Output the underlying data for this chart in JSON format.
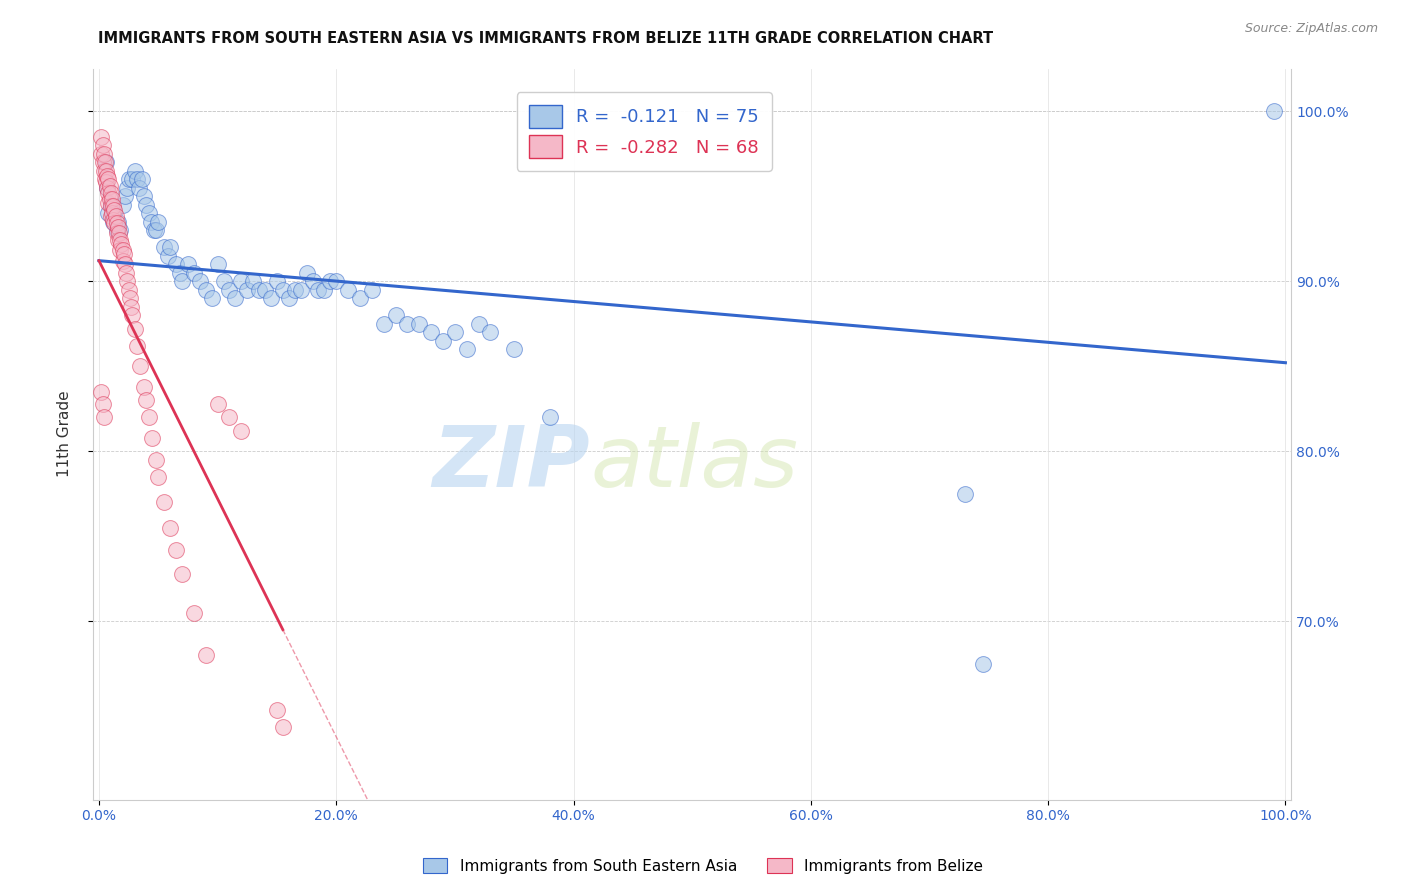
{
  "title": "IMMIGRANTS FROM SOUTH EASTERN ASIA VS IMMIGRANTS FROM BELIZE 11TH GRADE CORRELATION CHART",
  "source": "Source: ZipAtlas.com",
  "ylabel": "11th Grade",
  "xlim": [
    -0.005,
    1.005
  ],
  "ylim": [
    0.595,
    1.025
  ],
  "x_tick_vals": [
    0.0,
    0.2,
    0.4,
    0.6,
    0.8,
    1.0
  ],
  "x_tick_labels": [
    "0.0%",
    "20.0%",
    "40.0%",
    "60.0%",
    "80.0%",
    "100.0%"
  ],
  "y_tick_vals": [
    0.7,
    0.8,
    0.9,
    1.0
  ],
  "y_tick_labels": [
    "70.0%",
    "80.0%",
    "90.0%",
    "100.0%"
  ],
  "watermark_zip": "ZIP",
  "watermark_atlas": "atlas",
  "legend_r_blue": "-0.121",
  "legend_n_blue": "75",
  "legend_r_pink": "-0.282",
  "legend_n_pink": "68",
  "blue_color": "#a8c8e8",
  "pink_color": "#f5b8c8",
  "trend_blue_color": "#3366cc",
  "trend_pink_color": "#dd3355",
  "blue_trend_x0": 0.0,
  "blue_trend_y0": 0.912,
  "blue_trend_x1": 1.0,
  "blue_trend_y1": 0.852,
  "pink_trend_x0": 0.0,
  "pink_trend_y0": 0.912,
  "pink_trend_x1": 0.155,
  "pink_trend_y1": 0.695,
  "blue_scatter_x": [
    0.006,
    0.007,
    0.008,
    0.01,
    0.012,
    0.013,
    0.015,
    0.016,
    0.018,
    0.02,
    0.022,
    0.024,
    0.025,
    0.028,
    0.03,
    0.032,
    0.034,
    0.036,
    0.038,
    0.04,
    0.042,
    0.044,
    0.046,
    0.048,
    0.05,
    0.055,
    0.058,
    0.06,
    0.065,
    0.068,
    0.07,
    0.075,
    0.08,
    0.085,
    0.09,
    0.095,
    0.1,
    0.105,
    0.11,
    0.115,
    0.12,
    0.125,
    0.13,
    0.135,
    0.14,
    0.145,
    0.15,
    0.155,
    0.16,
    0.165,
    0.17,
    0.175,
    0.18,
    0.185,
    0.19,
    0.195,
    0.2,
    0.21,
    0.22,
    0.23,
    0.24,
    0.25,
    0.26,
    0.27,
    0.28,
    0.29,
    0.3,
    0.31,
    0.32,
    0.33,
    0.35,
    0.38,
    0.73,
    0.745,
    0.99
  ],
  "blue_scatter_y": [
    0.97,
    0.955,
    0.94,
    0.945,
    0.935,
    0.94,
    0.93,
    0.935,
    0.93,
    0.945,
    0.95,
    0.955,
    0.96,
    0.96,
    0.965,
    0.96,
    0.955,
    0.96,
    0.95,
    0.945,
    0.94,
    0.935,
    0.93,
    0.93,
    0.935,
    0.92,
    0.915,
    0.92,
    0.91,
    0.905,
    0.9,
    0.91,
    0.905,
    0.9,
    0.895,
    0.89,
    0.91,
    0.9,
    0.895,
    0.89,
    0.9,
    0.895,
    0.9,
    0.895,
    0.895,
    0.89,
    0.9,
    0.895,
    0.89,
    0.895,
    0.895,
    0.905,
    0.9,
    0.895,
    0.895,
    0.9,
    0.9,
    0.895,
    0.89,
    0.895,
    0.875,
    0.88,
    0.875,
    0.875,
    0.87,
    0.865,
    0.87,
    0.86,
    0.875,
    0.87,
    0.86,
    0.82,
    0.775,
    0.675,
    1.0
  ],
  "pink_scatter_x": [
    0.002,
    0.002,
    0.003,
    0.003,
    0.004,
    0.004,
    0.005,
    0.005,
    0.006,
    0.006,
    0.007,
    0.007,
    0.008,
    0.008,
    0.008,
    0.009,
    0.009,
    0.01,
    0.01,
    0.01,
    0.011,
    0.011,
    0.012,
    0.012,
    0.013,
    0.013,
    0.014,
    0.015,
    0.015,
    0.016,
    0.016,
    0.017,
    0.018,
    0.018,
    0.019,
    0.02,
    0.02,
    0.021,
    0.022,
    0.023,
    0.024,
    0.025,
    0.026,
    0.027,
    0.028,
    0.03,
    0.032,
    0.035,
    0.038,
    0.04,
    0.042,
    0.045,
    0.048,
    0.05,
    0.055,
    0.06,
    0.065,
    0.07,
    0.08,
    0.09,
    0.1,
    0.11,
    0.12,
    0.002,
    0.003,
    0.004,
    0.15,
    0.155
  ],
  "pink_scatter_y": [
    0.985,
    0.975,
    0.98,
    0.97,
    0.975,
    0.965,
    0.97,
    0.96,
    0.965,
    0.958,
    0.962,
    0.955,
    0.96,
    0.952,
    0.946,
    0.956,
    0.948,
    0.952,
    0.944,
    0.938,
    0.948,
    0.94,
    0.944,
    0.936,
    0.942,
    0.934,
    0.938,
    0.934,
    0.928,
    0.932,
    0.924,
    0.928,
    0.924,
    0.918,
    0.922,
    0.918,
    0.912,
    0.916,
    0.91,
    0.905,
    0.9,
    0.895,
    0.89,
    0.885,
    0.88,
    0.872,
    0.862,
    0.85,
    0.838,
    0.83,
    0.82,
    0.808,
    0.795,
    0.785,
    0.77,
    0.755,
    0.742,
    0.728,
    0.705,
    0.68,
    0.828,
    0.82,
    0.812,
    0.835,
    0.828,
    0.82,
    0.648,
    0.638
  ]
}
